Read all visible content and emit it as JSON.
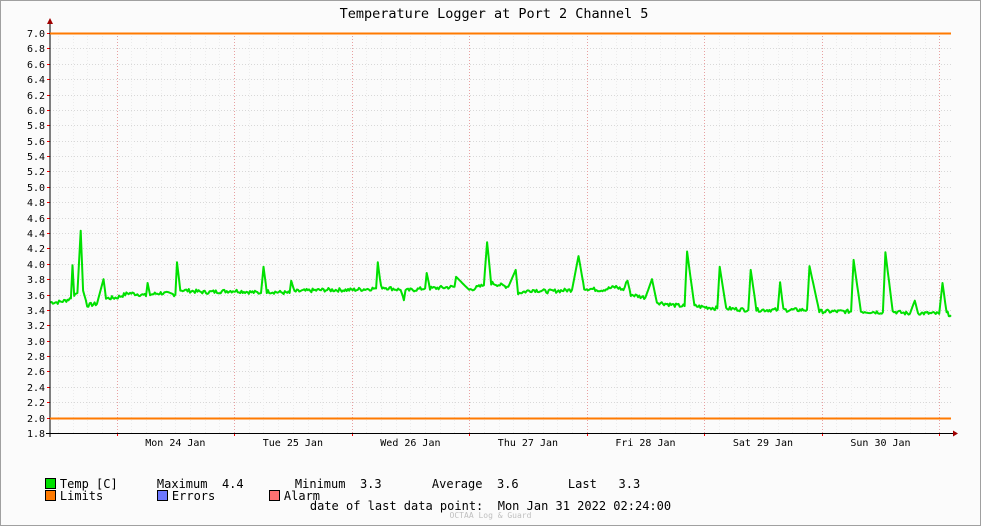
{
  "title": "Temperature Logger at Port 2 Channel 5",
  "legend": {
    "temp": {
      "label": "Temp [C]",
      "color": "#00e000"
    },
    "maximum": {
      "label": "Maximum",
      "value": "4.4"
    },
    "minimum": {
      "label": "Minimum",
      "value": "3.3"
    },
    "average": {
      "label": "Average",
      "value": "3.6"
    },
    "last": {
      "label": "Last",
      "value": "3.3"
    },
    "limits": {
      "label": "Limits",
      "color": "#ff7a00"
    },
    "errors": {
      "label": "Errors",
      "color": "#6d78ff"
    },
    "alarm": {
      "label": "Alarm",
      "color": "#ff7070"
    }
  },
  "footer": "date of last data point:  Mon Jan 31 2022 02:24:00",
  "credit": "OCTAA Log & Guard",
  "chart_data": {
    "type": "line",
    "title": "Temperature Logger at Port 2 Channel 5",
    "ylim": [
      1.8,
      7.0
    ],
    "yticks": [
      "1.8",
      "2.0",
      "2.2",
      "2.4",
      "2.6",
      "2.8",
      "3.0",
      "3.2",
      "3.4",
      "3.6",
      "3.8",
      "4.0",
      "4.2",
      "4.4",
      "4.6",
      "4.8",
      "5.0",
      "5.2",
      "5.4",
      "5.6",
      "5.8",
      "6.0",
      "6.2",
      "6.4",
      "6.6",
      "6.8",
      "7.0"
    ],
    "xlim": [
      "2022-01-23 10:24",
      "2022-01-31 02:24"
    ],
    "x_day_labels": [
      {
        "date": "2022-01-24",
        "label": "Mon 24 Jan"
      },
      {
        "date": "2022-01-25",
        "label": "Tue 25 Jan"
      },
      {
        "date": "2022-01-26",
        "label": "Wed 26 Jan"
      },
      {
        "date": "2022-01-27",
        "label": "Thu 27 Jan"
      },
      {
        "date": "2022-01-28",
        "label": "Fri 28 Jan"
      },
      {
        "date": "2022-01-29",
        "label": "Sat 29 Jan"
      },
      {
        "date": "2022-01-30",
        "label": "Sun 30 Jan"
      }
    ],
    "grid": true,
    "limits": [
      2.0,
      7.0
    ],
    "series": [
      {
        "name": "Temp [C]",
        "color": "#00e000",
        "points": [
          [
            "2022-01-23 10:30",
            3.5
          ],
          [
            "2022-01-23 12:00",
            3.5
          ],
          [
            "2022-01-23 13:30",
            3.52
          ],
          [
            "2022-01-23 14:40",
            3.55
          ],
          [
            "2022-01-23 15:00",
            3.98
          ],
          [
            "2022-01-23 15:20",
            3.6
          ],
          [
            "2022-01-23 16:00",
            3.62
          ],
          [
            "2022-01-23 16:40",
            4.43
          ],
          [
            "2022-01-23 17:10",
            3.65
          ],
          [
            "2022-01-23 18:00",
            3.46
          ],
          [
            "2022-01-23 20:00",
            3.48
          ],
          [
            "2022-01-23 21:20",
            3.8
          ],
          [
            "2022-01-23 21:50",
            3.55
          ],
          [
            "2022-01-24 00:00",
            3.56
          ],
          [
            "2022-01-24 02:30",
            3.62
          ],
          [
            "2022-01-24 05:00",
            3.6
          ],
          [
            "2022-01-24 06:00",
            3.58
          ],
          [
            "2022-01-24 06:20",
            3.75
          ],
          [
            "2022-01-24 06:50",
            3.6
          ],
          [
            "2022-01-24 09:00",
            3.62
          ],
          [
            "2022-01-24 12:00",
            3.6
          ],
          [
            "2022-01-24 12:20",
            4.02
          ],
          [
            "2022-01-24 13:00",
            3.66
          ],
          [
            "2022-01-24 18:00",
            3.63
          ],
          [
            "2022-01-25 00:00",
            3.65
          ],
          [
            "2022-01-25 05:30",
            3.62
          ],
          [
            "2022-01-25 06:00",
            3.96
          ],
          [
            "2022-01-25 06:40",
            3.64
          ],
          [
            "2022-01-25 11:20",
            3.62
          ],
          [
            "2022-01-25 11:40",
            3.78
          ],
          [
            "2022-01-25 12:20",
            3.64
          ],
          [
            "2022-01-25 18:00",
            3.66
          ],
          [
            "2022-01-26 00:00",
            3.66
          ],
          [
            "2022-01-26 05:00",
            3.68
          ],
          [
            "2022-01-26 05:20",
            4.02
          ],
          [
            "2022-01-26 06:00",
            3.7
          ],
          [
            "2022-01-26 10:00",
            3.66
          ],
          [
            "2022-01-26 10:40",
            3.54
          ],
          [
            "2022-01-26 11:00",
            3.65
          ],
          [
            "2022-01-26 15:00",
            3.68
          ],
          [
            "2022-01-26 15:20",
            3.88
          ],
          [
            "2022-01-26 16:00",
            3.68
          ],
          [
            "2022-01-26 21:00",
            3.7
          ],
          [
            "2022-01-26 21:20",
            3.83
          ],
          [
            "2022-01-27 00:00",
            3.66
          ],
          [
            "2022-01-27 03:00",
            3.72
          ],
          [
            "2022-01-27 03:40",
            4.28
          ],
          [
            "2022-01-27 04:30",
            3.75
          ],
          [
            "2022-01-27 08:00",
            3.7
          ],
          [
            "2022-01-27 09:30",
            3.92
          ],
          [
            "2022-01-27 10:00",
            3.62
          ],
          [
            "2022-01-27 13:00",
            3.66
          ],
          [
            "2022-01-27 16:00",
            3.64
          ],
          [
            "2022-01-27 21:00",
            3.66
          ],
          [
            "2022-01-27 22:20",
            4.1
          ],
          [
            "2022-01-27 23:30",
            3.68
          ],
          [
            "2022-01-28 03:00",
            3.66
          ],
          [
            "2022-01-28 06:00",
            3.7
          ],
          [
            "2022-01-28 07:30",
            3.66
          ],
          [
            "2022-01-28 08:20",
            3.78
          ],
          [
            "2022-01-28 09:00",
            3.6
          ],
          [
            "2022-01-28 12:00",
            3.56
          ],
          [
            "2022-01-28 13:20",
            3.8
          ],
          [
            "2022-01-28 14:20",
            3.5
          ],
          [
            "2022-01-28 18:00",
            3.46
          ],
          [
            "2022-01-28 20:00",
            3.45
          ],
          [
            "2022-01-28 20:30",
            4.16
          ],
          [
            "2022-01-28 22:00",
            3.45
          ],
          [
            "2022-01-29 02:40",
            3.42
          ],
          [
            "2022-01-29 03:10",
            3.96
          ],
          [
            "2022-01-29 04:30",
            3.42
          ],
          [
            "2022-01-29 09:00",
            3.4
          ],
          [
            "2022-01-29 09:30",
            3.92
          ],
          [
            "2022-01-29 10:40",
            3.4
          ],
          [
            "2022-01-29 15:00",
            3.4
          ],
          [
            "2022-01-29 15:30",
            3.76
          ],
          [
            "2022-01-29 16:10",
            3.4
          ],
          [
            "2022-01-29 21:00",
            3.4
          ],
          [
            "2022-01-29 21:30",
            3.97
          ],
          [
            "2022-01-29 23:30",
            3.38
          ],
          [
            "2022-01-30 06:00",
            3.38
          ],
          [
            "2022-01-30 06:30",
            4.05
          ],
          [
            "2022-01-30 08:00",
            3.38
          ],
          [
            "2022-01-30 12:30",
            3.37
          ],
          [
            "2022-01-30 13:00",
            4.15
          ],
          [
            "2022-01-30 14:30",
            3.38
          ],
          [
            "2022-01-30 18:00",
            3.35
          ],
          [
            "2022-01-30 19:00",
            3.52
          ],
          [
            "2022-01-30 19:40",
            3.36
          ],
          [
            "2022-01-31 00:00",
            3.35
          ],
          [
            "2022-01-31 00:40",
            3.75
          ],
          [
            "2022-01-31 01:30",
            3.36
          ],
          [
            "2022-01-31 02:24",
            3.33
          ]
        ]
      }
    ]
  }
}
